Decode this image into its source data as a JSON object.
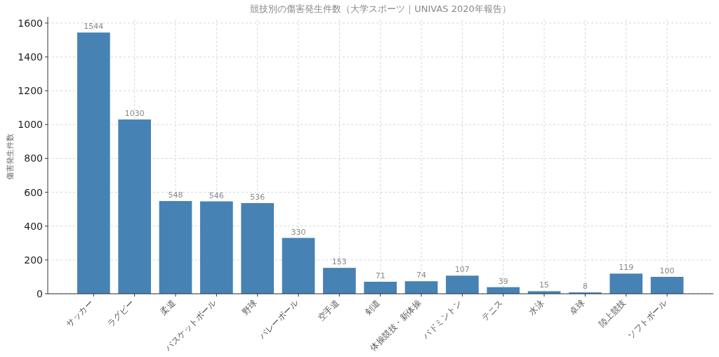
{
  "chart_data": {
    "type": "bar",
    "title": "競技別の傷害発生件数（大学スポーツ｜UNIVAS 2020年報告）",
    "ylabel": "傷害発生件数",
    "categories": [
      "サッカー",
      "ラグビー",
      "柔道",
      "バスケットボール",
      "野球",
      "バレーボール",
      "空手道",
      "剣道",
      "体操競技・新体操",
      "バドミントン",
      "テニス",
      "水泳",
      "卓球",
      "陸上競技",
      "ソフトボール"
    ],
    "values": [
      1544,
      1030,
      548,
      546,
      536,
      330,
      153,
      71,
      74,
      107,
      39,
      15,
      8,
      119,
      100
    ],
    "color": "#4682b4",
    "data_labels": true,
    "grid": true,
    "ylim": [
      0,
      1620
    ],
    "yticks": [
      0,
      200,
      400,
      600,
      800,
      1000,
      1200,
      1400,
      1600
    ]
  }
}
